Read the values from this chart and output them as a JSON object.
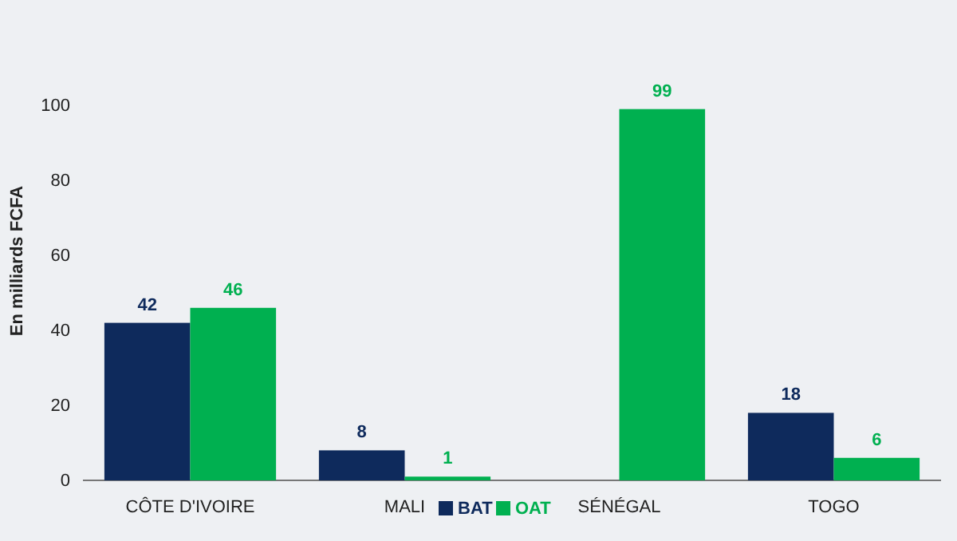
{
  "chart_data": {
    "type": "bar",
    "ylabel": "En milliards FCFA",
    "categories": [
      "CÔTE D'IVOIRE",
      "MALI",
      "SÉNÉGAL",
      "TOGO"
    ],
    "series": [
      {
        "name": "BAT",
        "color": "#0e2a5c",
        "values": [
          42,
          8,
          null,
          18
        ]
      },
      {
        "name": "OAT",
        "color": "#00b050",
        "values": [
          46,
          1,
          99,
          6
        ]
      }
    ],
    "ylim": [
      0,
      100
    ],
    "yticks": [
      0,
      20,
      40,
      60,
      80,
      100
    ],
    "data_labels": true,
    "legend": "bottom",
    "grid": false
  }
}
